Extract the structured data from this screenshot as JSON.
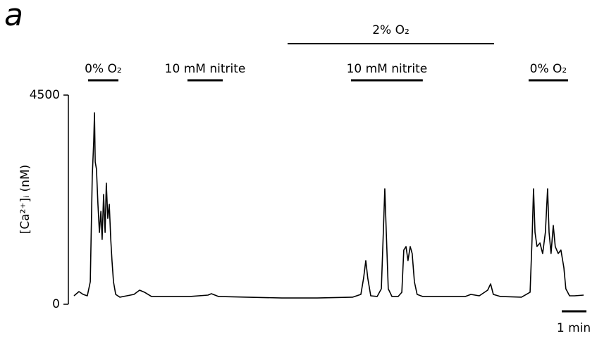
{
  "chart_data": {
    "type": "line",
    "panel_label": "a",
    "ylabel": "[Ca²⁺]ᵢ (nM)",
    "color": "#000000",
    "x": [
      0,
      0.2,
      0.37,
      0.54,
      0.66,
      0.74,
      0.8,
      0.83,
      0.86,
      0.91,
      0.97,
      1.03,
      1.09,
      1.14,
      1.2,
      1.26,
      1.31,
      1.37,
      1.43,
      1.49,
      1.54,
      1.6,
      1.69,
      1.86,
      2.14,
      2.43,
      2.66,
      2.86,
      3.14,
      3.86,
      4.71,
      5.43,
      5.57,
      5.86,
      7,
      8.43,
      9.86,
      11.29,
      11.63,
      11.74,
      11.83,
      11.91,
      12.03,
      12.29,
      12.46,
      12.54,
      12.6,
      12.66,
      12.74,
      12.89,
      13.14,
      13.29,
      13.37,
      13.46,
      13.54,
      13.63,
      13.71,
      13.8,
      13.91,
      14.14,
      15.29,
      15.86,
      16.09,
      16.43,
      16.77,
      16.89,
      17,
      17.29,
      18.14,
      18.49,
      18.57,
      18.63,
      18.69,
      18.77,
      18.89,
      19,
      19.11,
      19.2,
      19.26,
      19.34,
      19.43,
      19.51,
      19.63,
      19.74,
      19.86,
      19.94,
      20.09,
      20.29,
      20.66
    ],
    "values": [
      182,
      273,
      212,
      182,
      485,
      2757,
      3515,
      4120,
      3060,
      2909,
      2151,
      1545,
      2000,
      1394,
      2363,
      1545,
      2606,
      1848,
      2151,
      1394,
      939,
      485,
      212,
      152,
      182,
      212,
      303,
      258,
      167,
      167,
      167,
      197,
      227,
      167,
      152,
      136,
      136,
      152,
      212,
      560,
      939,
      560,
      182,
      167,
      333,
      1545,
      2485,
      1545,
      333,
      167,
      167,
      258,
      1166,
      1242,
      939,
      1242,
      1091,
      485,
      212,
      167,
      167,
      167,
      212,
      182,
      303,
      439,
      212,
      167,
      152,
      258,
      1394,
      2485,
      1545,
      1242,
      1318,
      1091,
      1545,
      2485,
      1545,
      1091,
      1697,
      1242,
      1091,
      1166,
      788,
      333,
      182,
      182,
      197
    ],
    "xlim": [
      0,
      20.66
    ],
    "ylim": [
      0,
      4500
    ],
    "yticks": [
      0,
      4500
    ],
    "annotations": [
      {
        "label": "0% O₂",
        "start": 0.57,
        "end": 1.8
      },
      {
        "label": "10 mM nitrite",
        "start": 4.6,
        "end": 6.03
      },
      {
        "label": "2% O₂",
        "start": 8.66,
        "end": 17.03
      },
      {
        "label": "10 mM nitrite",
        "start": 11.23,
        "end": 14.14
      },
      {
        "label": "0% O₂",
        "start": 18.43,
        "end": 20.03
      }
    ],
    "scalebar": {
      "value": 1,
      "label": "1 min"
    }
  }
}
